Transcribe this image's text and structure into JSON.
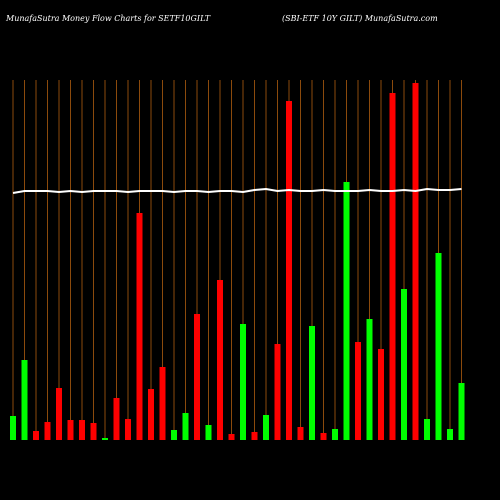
{
  "chart_data": {
    "type": "bar",
    "title": "MunafaSutra  Money Flow  Charts for SETF10GILT",
    "subtitle": "(SBI-ETF 10Y GILT) MunafaSutra.com",
    "categories": [
      null,
      null,
      null,
      null,
      null,
      null,
      null,
      null,
      null,
      null,
      null,
      null,
      null,
      null,
      null,
      null,
      null,
      null,
      null,
      null,
      null,
      null,
      null,
      null,
      null,
      null,
      null,
      null,
      null,
      null,
      null,
      null,
      null,
      null,
      null,
      null,
      null,
      null,
      null,
      null
    ],
    "ylim": [
      0,
      360
    ],
    "grid": true,
    "grid_color": "#8b4a0c",
    "series": [
      {
        "color": "bar-colors",
        "values": [
          24,
          80,
          9,
          18,
          52,
          20,
          20,
          17,
          2,
          42,
          21,
          227,
          51,
          73,
          10,
          27,
          126,
          15,
          160,
          6,
          116,
          8,
          25,
          96,
          339,
          13,
          114,
          7,
          11,
          258,
          98,
          121,
          91,
          347,
          151,
          357,
          21,
          187,
          11,
          57
        ],
        "colors": [
          "#00ff00",
          "#00ff00",
          "#ff0000",
          "#ff0000",
          "#ff0000",
          "#ff0000",
          "#ff0000",
          "#ff0000",
          "#00ff00",
          "#ff0000",
          "#ff0000",
          "#ff0000",
          "#ff0000",
          "#ff0000",
          "#00ff00",
          "#00ff00",
          "#ff0000",
          "#00ff00",
          "#ff0000",
          "#ff0000",
          "#00ff00",
          "#ff0000",
          "#00ff00",
          "#ff0000",
          "#ff0000",
          "#ff0000",
          "#00ff00",
          "#ff0000",
          "#00ff00",
          "#00ff00",
          "#ff0000",
          "#00ff00",
          "#ff0000",
          "#ff0000",
          "#00ff00",
          "#ff0000",
          "#00ff00",
          "#00ff00",
          "#00ff00",
          "#00ff00"
        ]
      },
      {
        "type": "line",
        "color": "#ffffff",
        "values": [
          247,
          249,
          249,
          249,
          248,
          249,
          248,
          249,
          249,
          249,
          248,
          249,
          249,
          249,
          248,
          249,
          249,
          248,
          249,
          249,
          248,
          250,
          251,
          249,
          250,
          249,
          249,
          250,
          249,
          249,
          249,
          250,
          249,
          249,
          250,
          249,
          251,
          250,
          250,
          251
        ]
      }
    ]
  }
}
